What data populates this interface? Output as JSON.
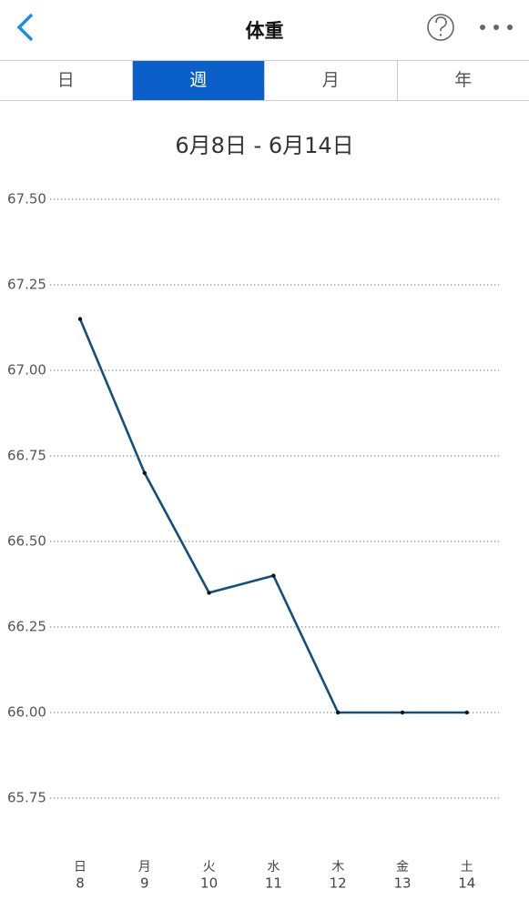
{
  "header": {
    "title": "体重"
  },
  "tabs": {
    "items": [
      "日",
      "週",
      "月",
      "年"
    ],
    "selected": 1
  },
  "date_range": "6月8日 - 6月14日",
  "chart_data": {
    "type": "line",
    "categories": [
      "日",
      "月",
      "火",
      "水",
      "木",
      "金",
      "土"
    ],
    "days": [
      8,
      9,
      10,
      11,
      12,
      13,
      14
    ],
    "series": [
      {
        "color": "#134e7c",
        "values": [
          67.15,
          66.7,
          66.35,
          66.4,
          66.0,
          66.0,
          66.0
        ]
      }
    ],
    "ylim": [
      65.75,
      67.5
    ],
    "yticks": [
      {
        "value": 65.75,
        "label": "65.75"
      },
      {
        "value": 66,
        "label": "66.00"
      },
      {
        "value": 66.25,
        "label": "66.25"
      },
      {
        "value": 66.5,
        "label": "66.50"
      },
      {
        "value": 66.75,
        "label": "66.75"
      },
      {
        "value": 67,
        "label": "67.00"
      },
      {
        "value": 67.25,
        "label": "67.25"
      },
      {
        "value": 67.5,
        "label": "67.50"
      }
    ],
    "grid": true
  }
}
